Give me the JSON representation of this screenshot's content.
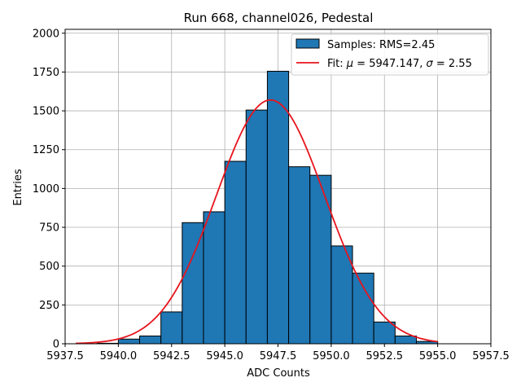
{
  "chart_data": {
    "type": "bar",
    "title": "Run 668, channel026, Pedestal",
    "xlabel": "ADC Counts",
    "ylabel": "Entries",
    "xlim": [
      5937.5,
      5957.5
    ],
    "ylim": [
      0,
      2025
    ],
    "xticks": [
      5937.5,
      5940.0,
      5942.5,
      5945.0,
      5947.5,
      5950.0,
      5952.5,
      5955.0,
      5957.5
    ],
    "xtick_labels": [
      "5937.5",
      "5940.0",
      "5942.5",
      "5945.0",
      "5947.5",
      "5950.0",
      "5952.5",
      "5955.0",
      "5957.5"
    ],
    "yticks": [
      0,
      250,
      500,
      750,
      1000,
      1250,
      1500,
      1750,
      2000
    ],
    "ytick_labels": [
      "0",
      "250",
      "500",
      "750",
      "1000",
      "1250",
      "1500",
      "1750",
      "2000"
    ],
    "grid": true,
    "legend_position": "top-right",
    "histogram": {
      "name": "Samples: RMS=2.45",
      "color": "#1f77b4",
      "edge_color": "#000000",
      "bin_edges": [
        5938,
        5939,
        5940,
        5941,
        5942,
        5943,
        5944,
        5945,
        5946,
        5947,
        5948,
        5949,
        5950,
        5951,
        5952,
        5953,
        5954,
        5955
      ],
      "counts": [
        0,
        3,
        30,
        50,
        205,
        780,
        850,
        1175,
        1505,
        1755,
        1140,
        1085,
        630,
        455,
        140,
        50,
        15
      ]
    },
    "fit": {
      "name": "Fit: μ = 5947.147, σ = 2.55",
      "name_prefix": "Fit: ",
      "mu_symbol": "μ",
      "mu_text": " = 5947.147, ",
      "sigma_symbol": "σ",
      "sigma_text": " = 2.55",
      "color": "#e8141d",
      "mu": 5947.147,
      "sigma": 2.55,
      "amplitude": 1570,
      "x_range": [
        5938,
        5955
      ]
    }
  }
}
